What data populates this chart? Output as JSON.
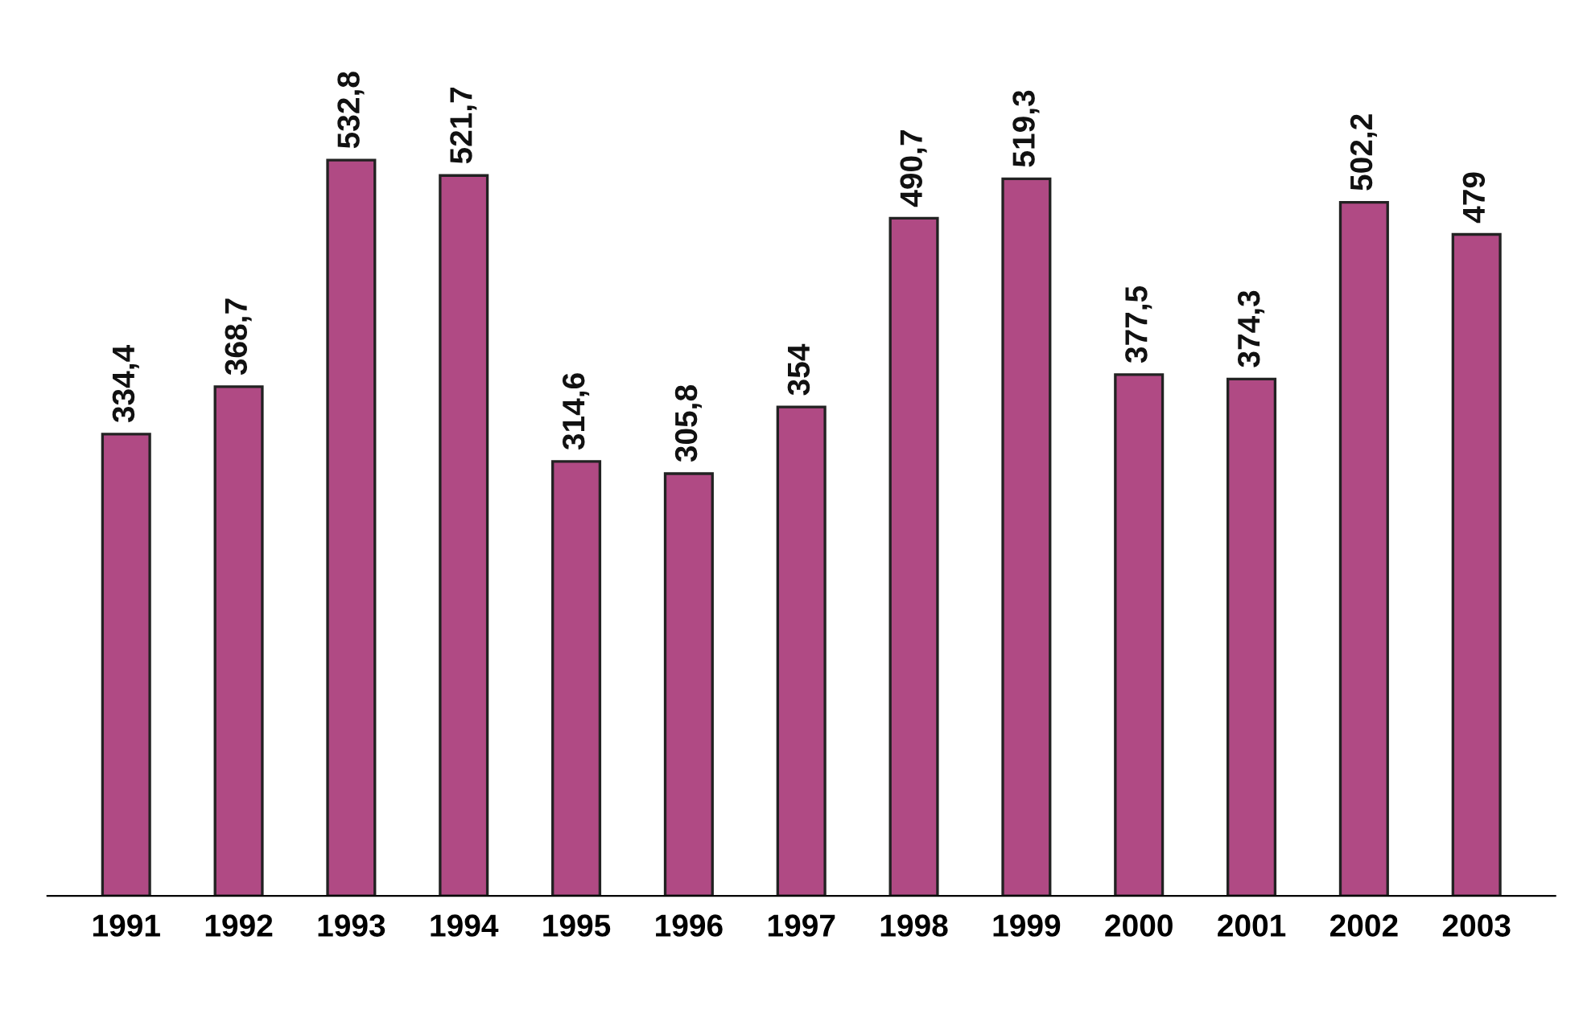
{
  "chart_data": {
    "type": "bar",
    "categories": [
      "1991",
      "1992",
      "1993",
      "1994",
      "1995",
      "1996",
      "1997",
      "1998",
      "1999",
      "2000",
      "2001",
      "2002",
      "2003"
    ],
    "values": [
      334.4,
      368.7,
      532.8,
      521.7,
      314.6,
      305.8,
      354,
      490.7,
      519.3,
      377.5,
      374.3,
      502.2,
      479
    ],
    "value_labels": [
      "334,4",
      "368,7",
      "532,8",
      "521,7",
      "314,6",
      "305,8",
      "354",
      "490,7",
      "519,3",
      "377,5",
      "374,3",
      "502,2",
      "479"
    ],
    "color": "#b04a84"
  }
}
